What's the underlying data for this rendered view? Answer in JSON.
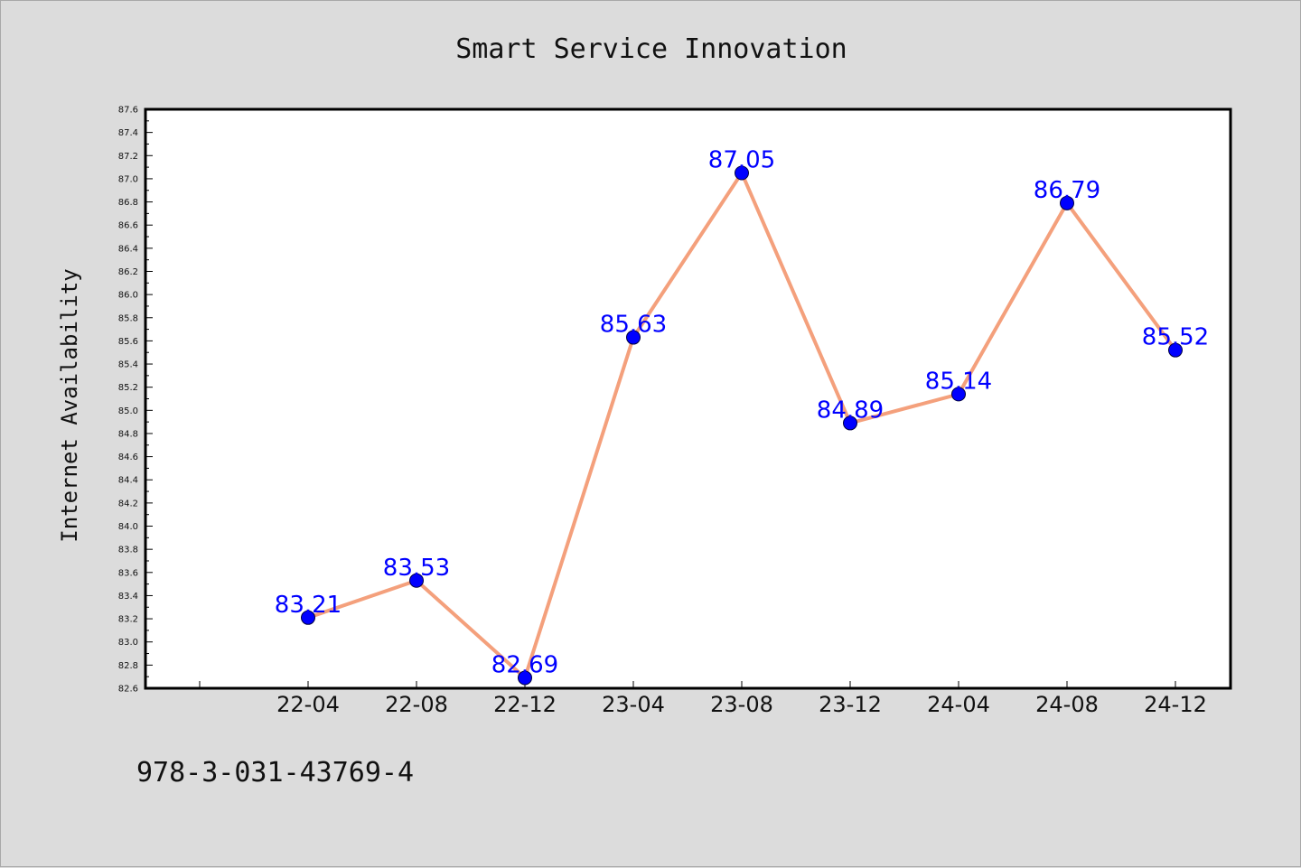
{
  "footer_text": "978-3-031-43769-4",
  "colors": {
    "background": "#dcdcdc",
    "plot_background": "#ffffff",
    "line": "#f4a07c",
    "marker": "#0000ff",
    "data_label": "#0000ff"
  },
  "chart_data": {
    "type": "line",
    "title": "Smart Service Innovation",
    "xlabel": "",
    "ylabel": "Internet Availability",
    "categories": [
      "22-04",
      "22-08",
      "22-12",
      "23-04",
      "23-08",
      "23-12",
      "24-04",
      "24-08",
      "24-12"
    ],
    "values": [
      83.21,
      83.53,
      82.69,
      85.63,
      87.05,
      84.89,
      85.14,
      86.79,
      85.52
    ],
    "data_labels": [
      "83.21",
      "83.53",
      "82.69",
      "85.63",
      "87.05",
      "84.89",
      "85.14",
      "86.79",
      "85.52"
    ],
    "ylim": [
      82.6,
      87.6
    ],
    "yticks": [
      "82.6",
      "82.8",
      "83.0",
      "83.2",
      "83.4",
      "83.6",
      "83.8",
      "84.0",
      "84.2",
      "84.4",
      "84.6",
      "84.8",
      "85.0",
      "85.2",
      "85.4",
      "85.6",
      "85.8",
      "86.0",
      "86.2",
      "86.4",
      "86.6",
      "86.8",
      "87.0",
      "87.2",
      "87.4",
      "87.6"
    ],
    "grid": false,
    "legend": "none"
  }
}
